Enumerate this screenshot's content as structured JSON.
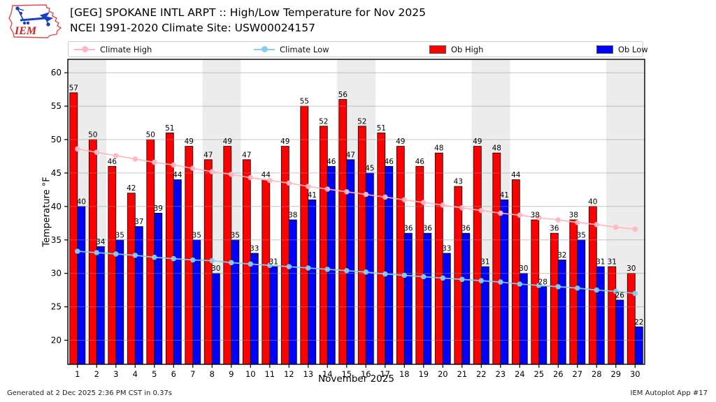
{
  "header": {
    "logo_text": "IEM",
    "title_line1": "[GEG] SPOKANE INTL ARPT :: High/Low Temperature for Nov 2025",
    "title_line2": "NCEI 1991-2020 Climate Site: USW00024157"
  },
  "legend": {
    "items": [
      {
        "label": "Climate High",
        "type": "line",
        "color": "#ffb6c1"
      },
      {
        "label": "Climate Low",
        "type": "line",
        "color": "#87ceeb"
      },
      {
        "label": "Ob High",
        "type": "box",
        "color": "#ff0000"
      },
      {
        "label": "Ob Low",
        "type": "box",
        "color": "#0000ff"
      }
    ]
  },
  "chart_data": {
    "type": "bar",
    "title": "[GEG] SPOKANE INTL ARPT :: High/Low Temperature for Nov 2025",
    "subtitle": "NCEI 1991-2020 Climate Site: USW00024157",
    "xlabel": "November 2025",
    "ylabel": "Temperature °F",
    "x": [
      1,
      2,
      3,
      4,
      5,
      6,
      7,
      8,
      9,
      10,
      11,
      12,
      13,
      14,
      15,
      16,
      17,
      18,
      19,
      20,
      21,
      22,
      23,
      24,
      25,
      26,
      27,
      28,
      29,
      30
    ],
    "series": [
      {
        "name": "Ob High",
        "type": "bar",
        "color": "#ff0000",
        "values": [
          57,
          50,
          46,
          42,
          50,
          51,
          49,
          47,
          49,
          47,
          44,
          49,
          55,
          52,
          56,
          52,
          51,
          49,
          46,
          48,
          43,
          49,
          48,
          44,
          38,
          36,
          38,
          40,
          31,
          30
        ]
      },
      {
        "name": "Ob Low",
        "type": "bar",
        "color": "#0000ff",
        "values": [
          40,
          34,
          35,
          37,
          39,
          44,
          35,
          30,
          35,
          33,
          31,
          38,
          41,
          46,
          47,
          45,
          46,
          36,
          36,
          33,
          36,
          31,
          41,
          30,
          28,
          32,
          35,
          31,
          26,
          22
        ]
      },
      {
        "name": "Climate High",
        "type": "line",
        "color": "#ffb6c1",
        "values": [
          48.6,
          48.1,
          47.6,
          47.1,
          46.6,
          46.2,
          45.7,
          45.2,
          44.8,
          44.3,
          43.9,
          43.5,
          43.0,
          42.6,
          42.2,
          41.8,
          41.4,
          41.0,
          40.6,
          40.2,
          39.8,
          39.4,
          39.0,
          38.7,
          38.3,
          38.0,
          37.6,
          37.3,
          36.9,
          36.6
        ]
      },
      {
        "name": "Climate Low",
        "type": "line",
        "color": "#87ceeb",
        "values": [
          33.3,
          33.1,
          32.9,
          32.7,
          32.4,
          32.2,
          32.0,
          31.9,
          31.6,
          31.4,
          31.2,
          31.0,
          30.8,
          30.6,
          30.4,
          30.2,
          29.9,
          29.7,
          29.5,
          29.3,
          29.1,
          28.9,
          28.7,
          28.4,
          28.2,
          28.0,
          27.8,
          27.5,
          27.3,
          27.0
        ]
      }
    ],
    "yticks": [
      20,
      25,
      30,
      35,
      40,
      45,
      50,
      55,
      60
    ],
    "ylim": [
      16.4,
      62.0
    ],
    "grid": true,
    "legend_position": "top",
    "shaded_day_ranges": [
      [
        1,
        2
      ],
      [
        8,
        9
      ],
      [
        15,
        16
      ],
      [
        22,
        23
      ],
      [
        29,
        30
      ]
    ],
    "colors": {
      "ob_high": "#ff0000",
      "ob_low": "#0000ff",
      "climate_high": "#ffb6c1",
      "climate_low": "#87ceeb",
      "weekend_band": "#ececec",
      "gridline": "#969696",
      "axis_border": "#000000"
    }
  },
  "footer": {
    "left": "Generated at 2 Dec 2025 2:36 PM CST in 0.37s",
    "right": "IEM Autoplot App #17"
  }
}
